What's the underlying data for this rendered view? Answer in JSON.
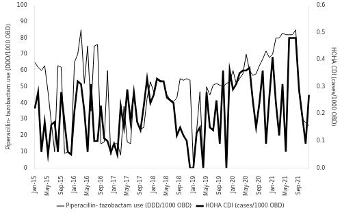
{
  "chart_data": {
    "type": "line",
    "categories": [
      "Jan-15",
      null,
      null,
      null,
      "May-15",
      null,
      null,
      null,
      "Sep-15",
      null,
      null,
      null,
      "Jan-16",
      null,
      null,
      null,
      "May-16",
      null,
      null,
      null,
      "Sep-16",
      null,
      null,
      null,
      "Jan-17",
      null,
      null,
      null,
      "May-17",
      null,
      null,
      null,
      "Sep-17",
      null,
      null,
      null,
      "Jan-18",
      null,
      null,
      null,
      "May-18",
      null,
      null,
      null,
      "Sep-18",
      null,
      null,
      null,
      "Jan-19",
      null,
      null,
      null,
      "May-19",
      null,
      null,
      null,
      "Sep-19",
      null,
      null,
      null,
      "Jan-20",
      null,
      null,
      null,
      "May-20",
      null,
      null,
      null,
      "Sep-20",
      null,
      null,
      null,
      "Jan-21",
      null,
      null,
      null,
      "May-21",
      null,
      null,
      null,
      "Sep-21",
      null,
      null,
      null
    ],
    "series": [
      {
        "name": "Piperacillin- tazobactam use (DDD/1000 OBD)",
        "color": "black",
        "values": [
          65,
          62,
          60,
          63,
          47,
          28,
          10,
          63,
          62,
          9,
          10,
          9,
          65,
          70,
          85,
          52,
          75,
          35,
          75,
          76,
          15,
          16,
          60,
          8,
          15,
          15,
          8,
          38,
          16,
          15,
          47,
          28,
          24,
          25,
          43,
          53,
          47,
          55,
          54,
          53,
          45,
          42,
          41,
          43,
          55,
          54,
          55,
          54,
          2,
          23,
          47,
          1,
          50,
          45,
          51,
          52,
          51,
          50,
          52,
          53,
          60,
          52,
          55,
          58,
          70,
          60,
          57,
          58,
          63,
          67,
          72,
          68,
          70,
          80,
          80,
          83,
          82,
          82,
          82,
          85,
          47,
          30,
          28,
          26
        ]
      },
      {
        "name": "HOHA CDI (cases/1000 OBD)",
        "color": "black",
        "axis": "y2",
        "values": [
          0.22,
          0.28,
          0.06,
          0.17,
          0.05,
          0.16,
          0.17,
          0.06,
          0.28,
          0.17,
          0.06,
          0.05,
          0.21,
          0.32,
          0.31,
          0.21,
          0.06,
          0.31,
          0.1,
          0.1,
          0.23,
          0.11,
          0.1,
          0.06,
          0.09,
          0.05,
          0.23,
          0.15,
          0.29,
          0.17,
          0.28,
          0.17,
          0.14,
          0.23,
          0.33,
          0.24,
          0.27,
          0.33,
          0.32,
          0.32,
          0.26,
          0.25,
          0.24,
          0.12,
          0.15,
          0.12,
          0.1,
          0.0,
          0.0,
          0.13,
          0.15,
          0.0,
          0.28,
          0.15,
          0.14,
          0.25,
          0.09,
          0.36,
          0.0,
          0.36,
          0.29,
          0.31,
          0.35,
          0.36,
          0.36,
          0.37,
          0.25,
          0.15,
          0.24,
          0.36,
          0.09,
          0.26,
          0.41,
          0.24,
          0.12,
          0.31,
          0.06,
          0.48,
          0.48,
          0.48,
          0.29,
          0.19,
          0.09,
          0.27
        ]
      }
    ],
    "ylabel": "Piperacillin- tazobactam use (DDD/1000 OBD)",
    "y2label": "HOHA CDI (cases/1000 OBD)",
    "ylim": [
      0,
      100
    ],
    "yticks": [
      0,
      10,
      20,
      30,
      40,
      50,
      60,
      70,
      80,
      90,
      100
    ],
    "y2lim": [
      0,
      0.6
    ],
    "y2ticks": [
      {
        "value": 0,
        "label": "0.0"
      },
      0.1,
      0.2,
      0.3,
      0.4,
      0.5,
      0.6
    ],
    "grid": false,
    "legend": "bottom"
  }
}
